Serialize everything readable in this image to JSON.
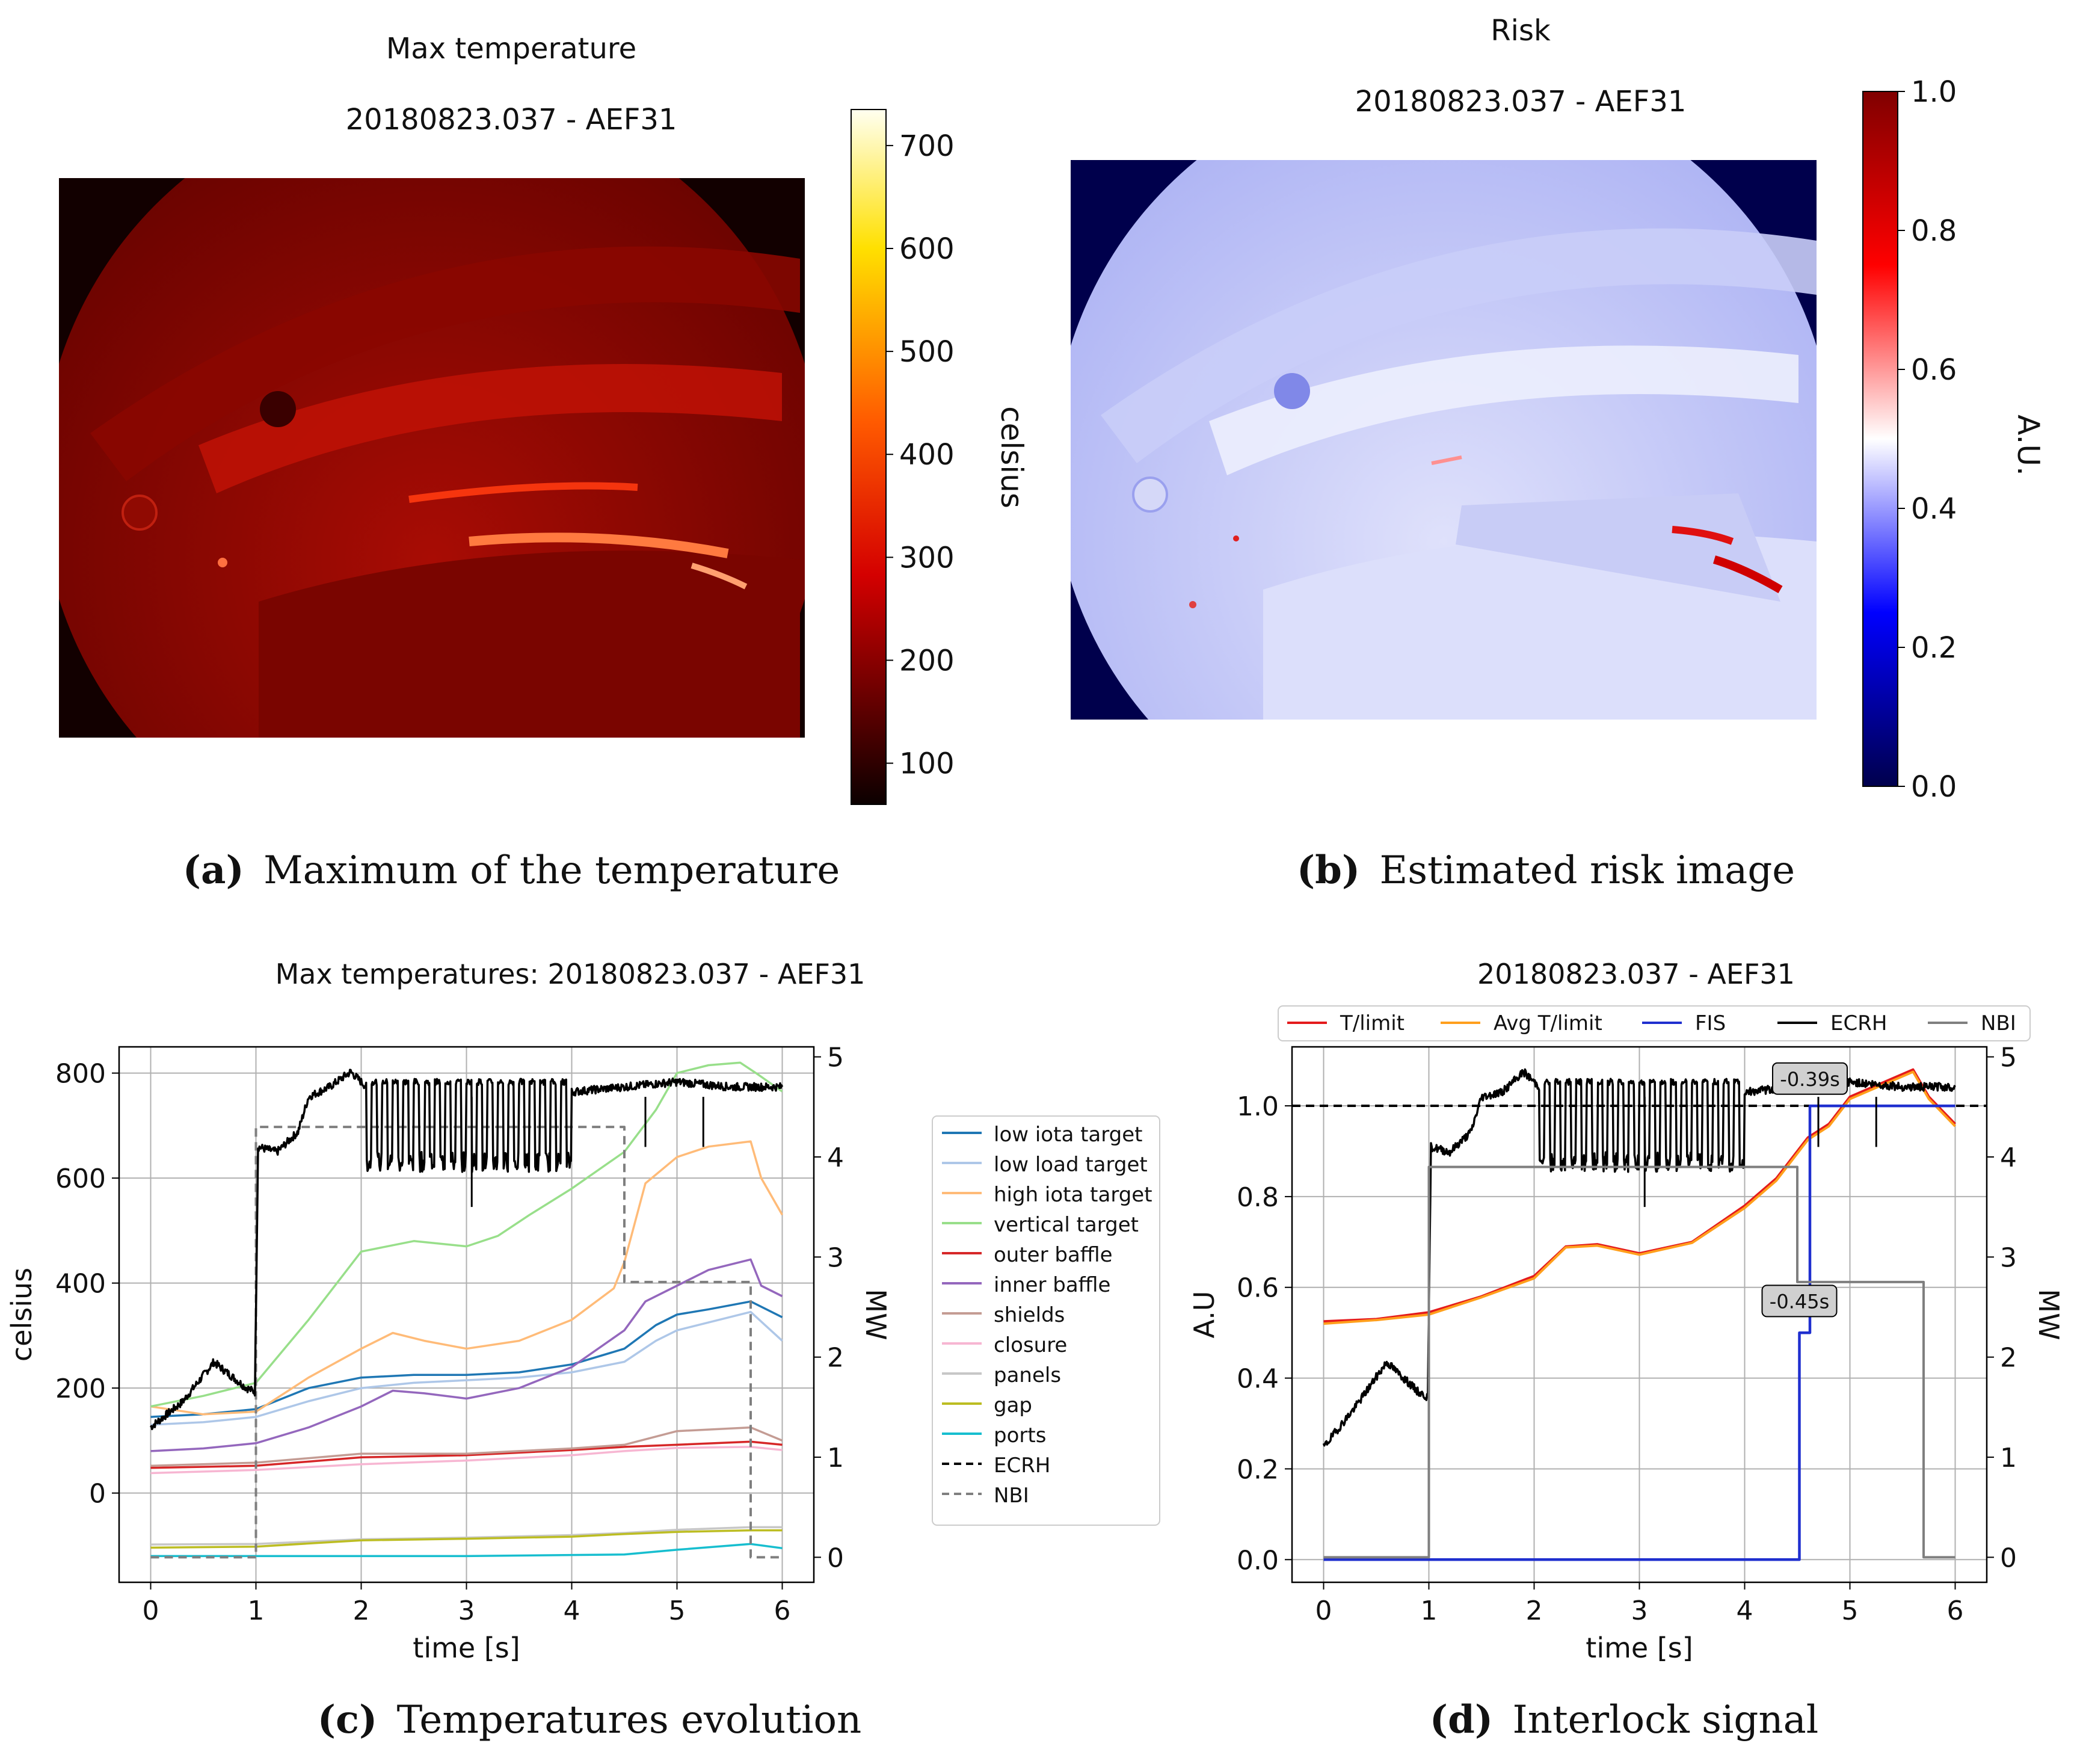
{
  "panels": {
    "a": {
      "title": "Max temperature",
      "subtitle": "20180823.037 - AEF31",
      "colorbar_label": "celsius",
      "colorbar_ticks": [
        "100",
        "200",
        "300",
        "400",
        "500",
        "600",
        "700"
      ],
      "caption_letter": "(a)",
      "caption_text": "Maximum of the temperature"
    },
    "b": {
      "title": "Risk",
      "subtitle": "20180823.037 - AEF31",
      "colorbar_label": "A.U.",
      "colorbar_ticks": [
        "0.0",
        "0.2",
        "0.4",
        "0.6",
        "0.8",
        "1.0"
      ],
      "caption_letter": "(b)",
      "caption_text": "Estimated risk image"
    },
    "c": {
      "caption_letter": "(c)",
      "caption_text": "Temperatures evolution"
    },
    "d": {
      "caption_letter": "(d)",
      "caption_text": "Interlock signal"
    }
  },
  "chart_data": [
    {
      "type": "line",
      "id": "c",
      "title": "Max temperatures: 20180823.037 - AEF31",
      "xlabel": "time [s]",
      "ylabel": "celsius",
      "y2label": "MW",
      "xlim": [
        -0.3,
        6.3
      ],
      "ylim": [
        -170,
        850
      ],
      "y2lim": [
        -0.25,
        5.1
      ],
      "xticks": [
        "0",
        "1",
        "2",
        "3",
        "4",
        "5",
        "6"
      ],
      "yticks": [
        "0",
        "200",
        "400",
        "600",
        "800"
      ],
      "y2ticks": [
        "0",
        "1",
        "2",
        "3",
        "4",
        "5"
      ],
      "grid": true,
      "legend": "outside-right",
      "series": [
        {
          "name": "low iota target",
          "color": "#1f77b4",
          "x": [
            0,
            0.5,
            1,
            1.5,
            2,
            2.5,
            3,
            3.5,
            4,
            4.5,
            4.8,
            5,
            5.3,
            5.7,
            6
          ],
          "y": [
            145,
            150,
            160,
            200,
            220,
            225,
            225,
            230,
            245,
            275,
            320,
            340,
            350,
            365,
            335
          ]
        },
        {
          "name": "low load target",
          "color": "#aec7e8",
          "x": [
            0,
            0.5,
            1,
            1.5,
            2,
            2.5,
            3,
            3.5,
            4,
            4.5,
            4.8,
            5,
            5.3,
            5.7,
            6
          ],
          "y": [
            130,
            135,
            145,
            175,
            200,
            210,
            215,
            220,
            230,
            250,
            290,
            310,
            325,
            345,
            290
          ]
        },
        {
          "name": "high iota target",
          "color": "#ffbb78",
          "x": [
            0,
            0.5,
            1,
            1.5,
            2,
            2.3,
            2.6,
            3,
            3.5,
            4,
            4.4,
            4.5,
            4.7,
            5,
            5.3,
            5.7,
            5.8,
            6
          ],
          "y": [
            165,
            150,
            155,
            220,
            275,
            305,
            290,
            275,
            290,
            330,
            390,
            440,
            590,
            640,
            660,
            670,
            600,
            530
          ]
        },
        {
          "name": "vertical target",
          "color": "#98df8a",
          "x": [
            0,
            0.5,
            1,
            1.5,
            2,
            2.5,
            3,
            3.3,
            3.6,
            4,
            4.5,
            4.8,
            5,
            5.3,
            5.6,
            5.75,
            6
          ],
          "y": [
            165,
            185,
            210,
            330,
            460,
            480,
            470,
            490,
            530,
            580,
            650,
            730,
            800,
            815,
            820,
            800,
            765
          ]
        },
        {
          "name": "outer baffle",
          "color": "#d62728",
          "x": [
            0,
            1,
            2,
            3,
            4,
            4.5,
            5,
            5.7,
            6
          ],
          "y": [
            48,
            52,
            68,
            72,
            82,
            88,
            92,
            98,
            92
          ]
        },
        {
          "name": "inner baffle",
          "color": "#9467bd",
          "x": [
            0,
            0.5,
            1,
            1.5,
            2,
            2.3,
            2.6,
            3,
            3.5,
            4,
            4.5,
            4.7,
            5,
            5.3,
            5.7,
            5.8,
            6
          ],
          "y": [
            80,
            85,
            95,
            125,
            165,
            195,
            190,
            180,
            200,
            240,
            310,
            365,
            395,
            425,
            445,
            395,
            375
          ]
        },
        {
          "name": "shields",
          "color": "#c49c94",
          "x": [
            0,
            1,
            2,
            3,
            4,
            4.5,
            5,
            5.7,
            6
          ],
          "y": [
            52,
            58,
            75,
            75,
            85,
            92,
            118,
            125,
            100
          ]
        },
        {
          "name": "closure",
          "color": "#f7b6d2",
          "x": [
            0,
            1,
            2,
            3,
            4,
            4.5,
            5,
            5.7,
            6
          ],
          "y": [
            38,
            44,
            55,
            62,
            72,
            80,
            86,
            88,
            82
          ]
        },
        {
          "name": "panels",
          "color": "#c7c7c7",
          "x": [
            0,
            1,
            2,
            3,
            4,
            4.5,
            5,
            5.7,
            6
          ],
          "y": [
            -98,
            -97,
            -88,
            -85,
            -80,
            -76,
            -70,
            -65,
            -65
          ]
        },
        {
          "name": "gap",
          "color": "#bcbd22",
          "x": [
            0,
            1,
            2,
            3,
            4,
            4.5,
            5,
            5.7,
            6
          ],
          "y": [
            -104,
            -102,
            -90,
            -87,
            -83,
            -78,
            -74,
            -71,
            -71
          ]
        },
        {
          "name": "ports",
          "color": "#17becf",
          "x": [
            0,
            1,
            2,
            3,
            4,
            4.5,
            5,
            5.7,
            6
          ],
          "y": [
            -120,
            -120,
            -120,
            -120,
            -118,
            -117,
            -108,
            -97,
            -105
          ]
        },
        {
          "name": "ECRH",
          "color": "#000000",
          "axis": "y2",
          "dash": true
        },
        {
          "name": "NBI",
          "color": "#7f7f7f",
          "axis": "y2",
          "dash": true,
          "x": [
            0,
            1,
            1,
            4.5,
            4.5,
            5.7,
            5.7,
            6
          ],
          "y": [
            0,
            0,
            4.3,
            4.3,
            2.75,
            2.75,
            0,
            0
          ]
        }
      ],
      "ecrh_trace": {
        "x": [
          0,
          0.3,
          0.6,
          0.9,
          0.99,
          1.02,
          1.2,
          1.4,
          1.5,
          1.7,
          1.9,
          2.1,
          2.3,
          3,
          4,
          4.5,
          5,
          5.5,
          6
        ],
        "y": [
          1.3,
          1.55,
          1.95,
          1.7,
          1.65,
          4.1,
          4.05,
          4.25,
          4.6,
          4.7,
          4.85,
          4.65,
          4.7,
          4.6,
          4.65,
          4.7,
          4.75,
          4.7,
          4.7
        ]
      }
    },
    {
      "type": "line",
      "id": "d",
      "title": "20180823.037 - AEF31",
      "xlabel": "time [s]",
      "ylabel": "A.U",
      "y2label": "MW",
      "xlim": [
        -0.3,
        6.3
      ],
      "ylim": [
        -0.05,
        1.13
      ],
      "y2lim": [
        -0.25,
        5.1
      ],
      "xticks": [
        "0",
        "1",
        "2",
        "3",
        "4",
        "5",
        "6"
      ],
      "yticks": [
        "0.0",
        "0.2",
        "0.4",
        "0.6",
        "0.8",
        "1.0"
      ],
      "y2ticks": [
        "0",
        "1",
        "2",
        "3",
        "4",
        "5"
      ],
      "grid": true,
      "legend": "top",
      "threshold": 1.0,
      "annotations": [
        {
          "text": "-0.39s",
          "x": 4.62,
          "y": 1.06
        },
        {
          "text": "-0.45s",
          "x": 4.52,
          "y": 0.57
        }
      ],
      "series": [
        {
          "name": "T/limit",
          "color": "#e41a1c",
          "x": [
            0,
            0.5,
            1,
            1.5,
            2,
            2.3,
            2.6,
            3,
            3.5,
            4,
            4.3,
            4.6,
            4.8,
            5,
            5.3,
            5.6,
            5.75,
            6
          ],
          "y": [
            0.525,
            0.53,
            0.545,
            0.58,
            0.625,
            0.69,
            0.695,
            0.675,
            0.7,
            0.78,
            0.84,
            0.93,
            0.96,
            1.02,
            1.05,
            1.08,
            1.02,
            0.96
          ]
        },
        {
          "name": "Avg T/limit",
          "color": "#ff9f1c",
          "x": [
            0,
            0.5,
            1,
            1.5,
            2,
            2.3,
            2.6,
            3,
            3.5,
            4,
            4.3,
            4.6,
            4.8,
            5,
            5.3,
            5.6,
            5.75,
            6
          ],
          "y": [
            0.52,
            0.528,
            0.54,
            0.578,
            0.62,
            0.688,
            0.692,
            0.672,
            0.698,
            0.775,
            0.835,
            0.925,
            0.955,
            1.015,
            1.045,
            1.075,
            1.015,
            0.955
          ]
        },
        {
          "name": "FIS",
          "color": "#1f2fcf",
          "x": [
            0,
            4.52,
            4.52,
            4.62,
            4.62,
            6
          ],
          "y": [
            0,
            0,
            0.5,
            0.5,
            1.0,
            1.0
          ]
        },
        {
          "name": "ECRH",
          "color": "#000000",
          "axis": "y2",
          "x": [
            0,
            0.3,
            0.6,
            0.9,
            0.99,
            1.02,
            1.2,
            1.4,
            1.5,
            1.7,
            1.9,
            2.1,
            2.3,
            3,
            4,
            4.5,
            5,
            5.5,
            6
          ],
          "y": [
            1.1,
            1.5,
            1.95,
            1.65,
            1.6,
            4.1,
            4.05,
            4.25,
            4.6,
            4.65,
            4.85,
            4.65,
            4.7,
            4.6,
            4.65,
            4.7,
            4.75,
            4.7,
            4.7
          ]
        },
        {
          "name": "NBI",
          "color": "#7f7f7f",
          "axis": "y2",
          "x": [
            0,
            1,
            1,
            4.5,
            4.5,
            5.7,
            5.7,
            6
          ],
          "y": [
            0,
            0,
            3.9,
            3.9,
            2.75,
            2.75,
            0,
            0
          ]
        }
      ]
    }
  ]
}
